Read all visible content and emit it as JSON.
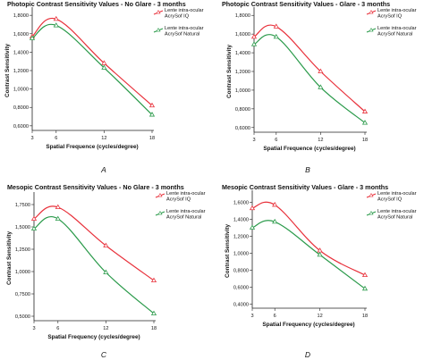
{
  "panel_labels": [
    "A",
    "B",
    "C",
    "D"
  ],
  "colors": {
    "iq": "#e8303a",
    "natural": "#2a9a4a",
    "axis": "#222222"
  },
  "chart_data": [
    {
      "type": "line",
      "title": "Photopic Contrast Sensitivity Values - No Glare - 3 months",
      "xlabel": "Spatial Frequence (cycles/degree)",
      "ylabel": "Contrast Sensitivity",
      "x": [
        3,
        6,
        12,
        18
      ],
      "xticks": [
        "3",
        "6",
        "12",
        "18"
      ],
      "xlim": [
        3,
        18
      ],
      "yticks": [
        0.6,
        0.8,
        1.0,
        1.2,
        1.4,
        1.6,
        1.8
      ],
      "yticklabels": [
        "0,6000",
        "0,8000",
        "1,0000",
        "1,2000",
        "1,4000",
        "1,6000",
        "1,8000"
      ],
      "ylim": [
        0.55,
        1.85
      ],
      "series": [
        {
          "name": "Lente intra-ocular AcrySof IQ",
          "values": [
            1.57,
            1.76,
            1.28,
            0.82
          ],
          "color": "#e8303a"
        },
        {
          "name": "Lente intra-ocular AcrySof Natural",
          "values": [
            1.55,
            1.69,
            1.23,
            0.72
          ],
          "color": "#2a9a4a"
        }
      ]
    },
    {
      "type": "line",
      "title": "Photopic Contrast Sensitivity Values - Glare - 3 months",
      "xlabel": "Spatial Frequence (cycles/degree)",
      "ylabel": "Contrast Sensitivity",
      "x": [
        3,
        6,
        12,
        18
      ],
      "xticks": [
        "3",
        "6",
        "12",
        "18"
      ],
      "xlim": [
        3,
        18
      ],
      "yticks": [
        0.6,
        0.8,
        1.0,
        1.2,
        1.4,
        1.6,
        1.8
      ],
      "yticklabels": [
        "0,6000",
        "0,8000",
        "1,0000",
        "1,2000",
        "1,4000",
        "1,6000",
        "1,8000"
      ],
      "ylim": [
        0.55,
        1.85
      ],
      "series": [
        {
          "name": "Lente intra-ocular AcrySof IQ",
          "values": [
            1.57,
            1.68,
            1.2,
            0.77
          ],
          "color": "#e8303a"
        },
        {
          "name": "Lente intra-ocular AcrySof Natural",
          "values": [
            1.49,
            1.57,
            1.03,
            0.65
          ],
          "color": "#2a9a4a"
        }
      ]
    },
    {
      "type": "line",
      "title": "Mesopic Contrast Sensitivity Values - No Glare - 3 months",
      "xlabel": "Spatial Frequency (cycles/degree)",
      "ylabel": "Contrast Sensitivity",
      "x": [
        3,
        6,
        12,
        18
      ],
      "xticks": [
        "3",
        "6",
        "12",
        "18"
      ],
      "xlim": [
        3,
        18
      ],
      "yticks": [
        0.5,
        0.75,
        1.0,
        1.25,
        1.5,
        1.75
      ],
      "yticklabels": [
        "0,5000",
        "0,7500",
        "1,0000",
        "1,2500",
        "1,5000",
        "1,7500"
      ],
      "ylim": [
        0.45,
        1.85
      ],
      "series": [
        {
          "name": "Lente intra-ocular AcrySof IQ",
          "values": [
            1.59,
            1.72,
            1.29,
            0.9
          ],
          "color": "#e8303a"
        },
        {
          "name": "Lente intra-ocular AcrySof Natural",
          "values": [
            1.48,
            1.59,
            0.99,
            0.53
          ],
          "color": "#2a9a4a"
        }
      ]
    },
    {
      "type": "line",
      "title": "Mesopic Contrast Sensitivity Values - Glare - 3 months",
      "xlabel": "Spatial Frequency (cycles/degree)",
      "ylabel": "Contrast Sensitivity",
      "x": [
        3,
        6,
        12,
        18
      ],
      "xticks": [
        "3",
        "6",
        "12",
        "18"
      ],
      "xlim": [
        3,
        18
      ],
      "yticks": [
        0.4,
        0.6,
        0.8,
        1.0,
        1.2,
        1.4,
        1.6
      ],
      "yticklabels": [
        "0,4000",
        "0,6000",
        "0,8000",
        "1,0000",
        "1,2000",
        "1,4000",
        "1,6000"
      ],
      "ylim": [
        0.35,
        1.7
      ],
      "series": [
        {
          "name": "Lente intra-ocular AcrySof IQ",
          "values": [
            1.53,
            1.57,
            1.03,
            0.74
          ],
          "color": "#e8303a"
        },
        {
          "name": "Lente intra-ocular AcrySof Natural",
          "values": [
            1.3,
            1.37,
            0.98,
            0.58
          ],
          "color": "#2a9a4a"
        }
      ]
    }
  ]
}
